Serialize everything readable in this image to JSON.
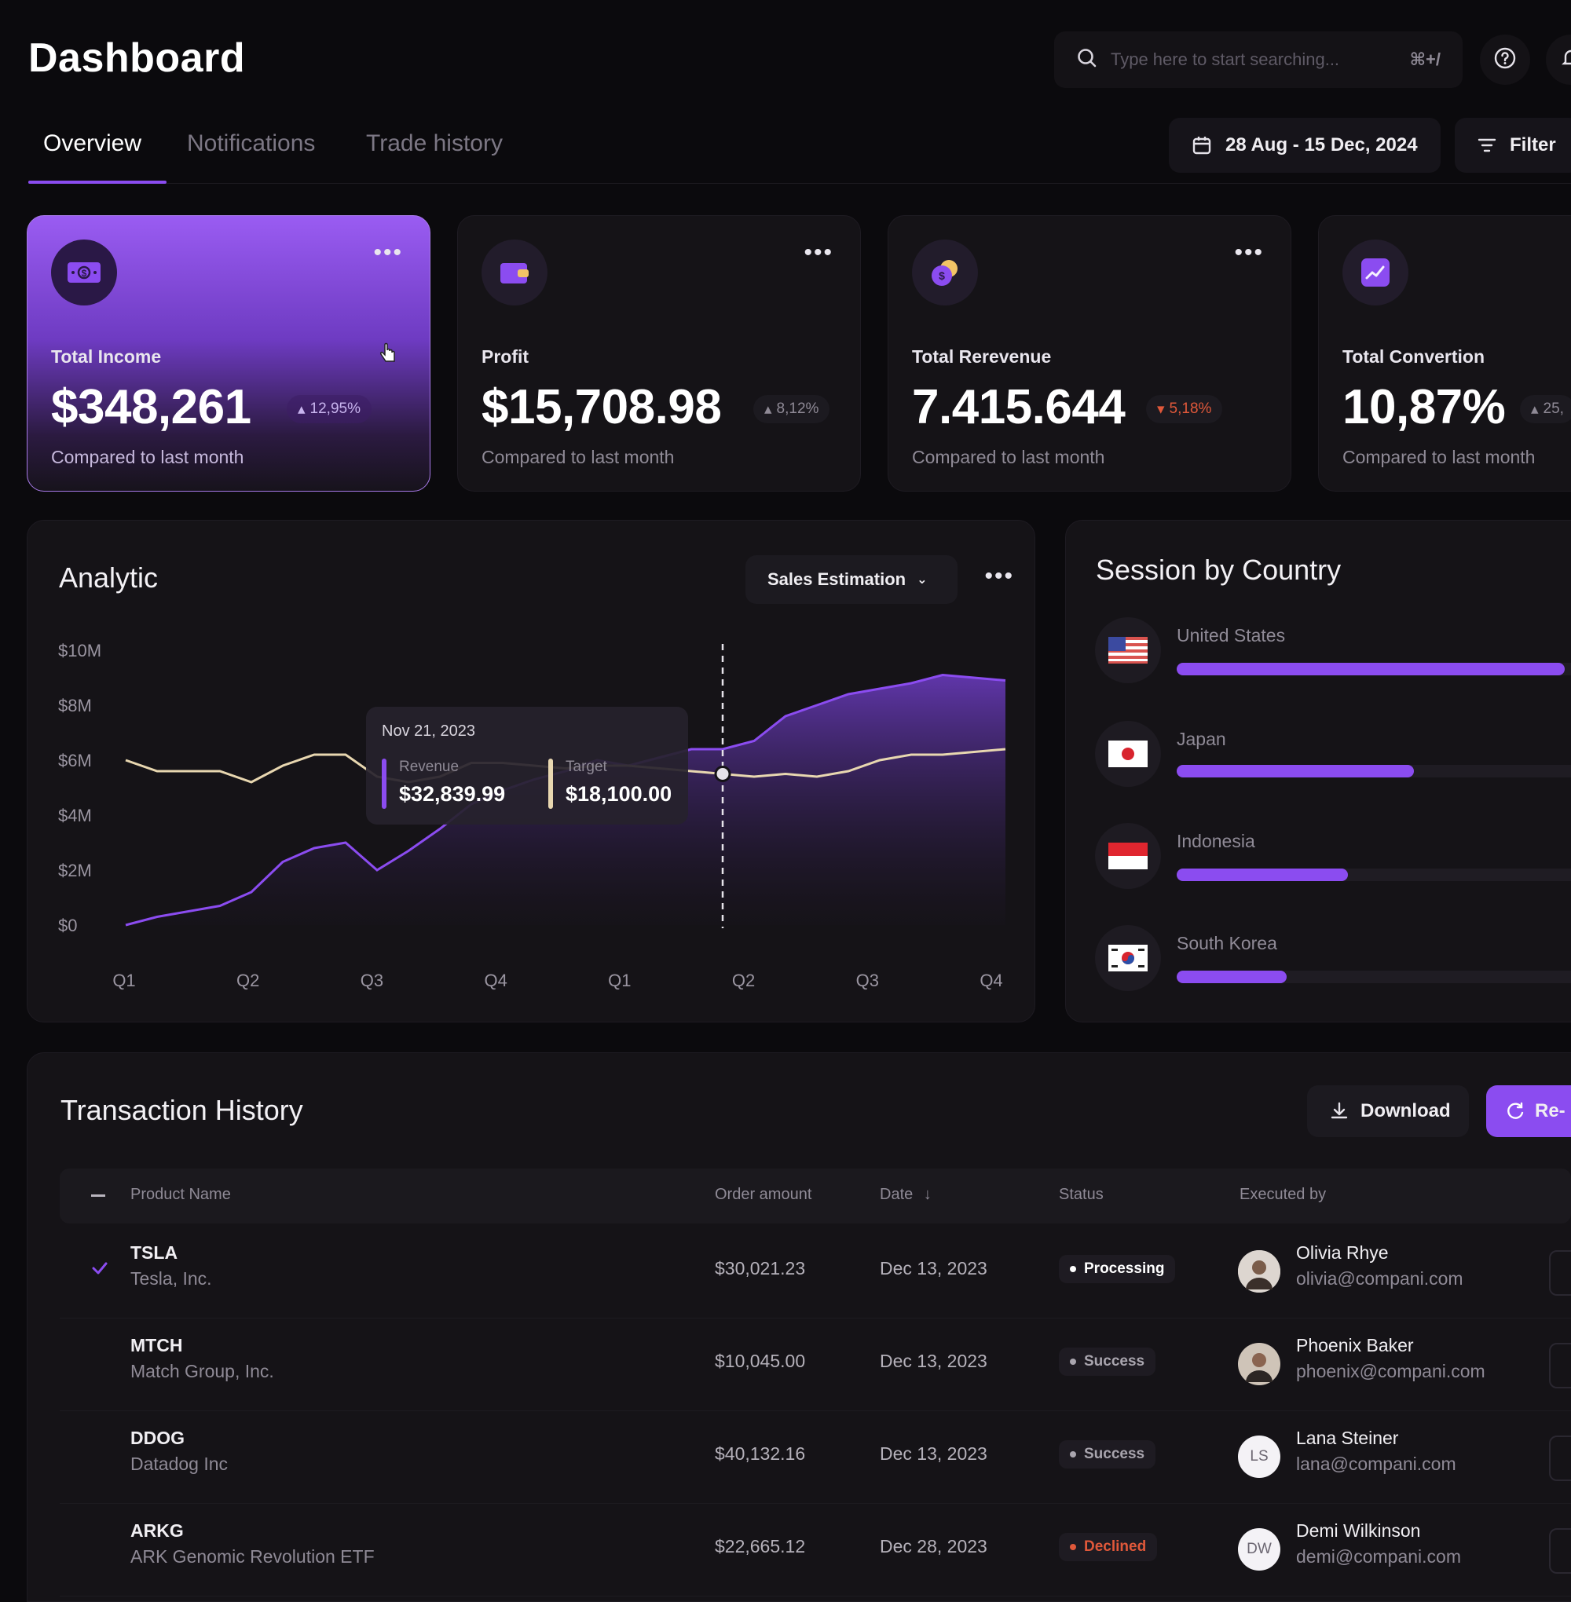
{
  "header": {
    "title": "Dashboard",
    "search_placeholder": "Type here to start searching...",
    "search_shortcut": "⌘+/",
    "help_icon": "help-circle-icon",
    "notification_icon": "bell-icon"
  },
  "tabs": [
    {
      "label": "Overview",
      "active": true
    },
    {
      "label": "Notifications",
      "active": false
    },
    {
      "label": "Trade history",
      "active": false
    }
  ],
  "date_range": {
    "label": "28 Aug - 15 Dec, 2024",
    "icon": "calendar-icon"
  },
  "filter": {
    "label": "Filter",
    "icon": "filter-icon"
  },
  "stats": [
    {
      "label": "Total Income",
      "value": "$348,261",
      "change": "12,95%",
      "footnote": "Compared to last month",
      "icon": "money-icon",
      "highlight": true
    },
    {
      "label": "Profit",
      "value": "$15,708.98",
      "change": "8,12%",
      "footnote": "Compared to last month",
      "icon": "wallet-icon",
      "highlight": false
    },
    {
      "label": "Total Rerevenue",
      "value": "7.415.644",
      "change": "5,18%",
      "footnote": "Compared to last month",
      "icon": "coins-icon",
      "highlight": false
    },
    {
      "label": "Total Convertion",
      "value": "10,87%",
      "change": "25,",
      "footnote": "Compared to last month",
      "icon": "trend-chart-icon",
      "highlight": false
    }
  ],
  "analytic": {
    "title": "Analytic",
    "dropdown_label": "Sales Estimation",
    "tooltip": {
      "date": "Nov 21, 2023",
      "revenue_label": "Revenue",
      "revenue_value": "$32,839.99",
      "target_label": "Target",
      "target_value": "$18,100.00"
    }
  },
  "chart_data": {
    "type": "area",
    "title": "Analytic",
    "xlabel": "",
    "ylabel": "",
    "categories": [
      "Q1",
      "Q2",
      "Q3",
      "Q4",
      "Q1",
      "Q2",
      "Q3",
      "Q4"
    ],
    "y_ticks": [
      "$10M",
      "$8M",
      "$6M",
      "$4M",
      "$2M",
      "$0"
    ],
    "ylim": [
      0,
      10
    ],
    "grid": false,
    "x": [
      0,
      0.25,
      0.5,
      0.75,
      1,
      1.25,
      1.5,
      1.75,
      2,
      2.25,
      2.5,
      2.75,
      3,
      3.25,
      3.5,
      3.75,
      4,
      4.25,
      4.5,
      4.75,
      5,
      5.25,
      5.5,
      5.75,
      6,
      6.25,
      6.5,
      6.75,
      7
    ],
    "series": [
      {
        "name": "Revenue",
        "color": "#8b4cf0",
        "values": [
          0.0,
          0.3,
          0.5,
          0.7,
          1.2,
          2.3,
          2.8,
          3.0,
          2.0,
          2.7,
          3.5,
          4.4,
          4.9,
          5.3,
          5.6,
          6.0,
          5.8,
          6.1,
          6.4,
          6.4,
          6.7,
          7.6,
          8.0,
          8.4,
          8.6,
          8.8,
          9.1,
          9.0,
          8.9
        ]
      },
      {
        "name": "Target",
        "color": "#e8d7b0",
        "values": [
          6.0,
          5.6,
          5.6,
          5.6,
          5.2,
          5.8,
          6.2,
          6.2,
          5.4,
          5.2,
          5.4,
          5.9,
          5.9,
          5.8,
          5.7,
          5.8,
          5.8,
          5.7,
          5.6,
          5.5,
          5.4,
          5.5,
          5.4,
          5.6,
          6.0,
          6.2,
          6.2,
          6.3,
          6.4
        ]
      }
    ],
    "marker_x": 4.75
  },
  "sessions": {
    "title": "Session by Country",
    "countries": [
      {
        "name": "United States",
        "flag": "us-flag-icon",
        "fraction": 0.95
      },
      {
        "name": "Japan",
        "flag": "japan-flag-icon",
        "fraction": 0.58
      },
      {
        "name": "Indonesia",
        "flag": "indonesia-flag-icon",
        "fraction": 0.42
      },
      {
        "name": "South Korea",
        "flag": "south-korea-flag-icon",
        "fraction": 0.27
      }
    ]
  },
  "transactions": {
    "title": "Transaction History",
    "download_label": "Download",
    "refresh_label": "Re-",
    "columns": [
      "Product Name",
      "Order amount",
      "Date",
      "Status",
      "Executed by"
    ],
    "rows": [
      {
        "symbol": "TSLA",
        "name": "Tesla, Inc.",
        "amount": "$30,021.23",
        "date": "Dec 13, 2023",
        "status": "Processing",
        "status_color": "#ffffff",
        "user": "Olivia Rhye",
        "email": "olivia@compani.com",
        "initials": "",
        "checked": true
      },
      {
        "symbol": "MTCH",
        "name": "Match Group, Inc.",
        "amount": "$10,045.00",
        "date": "Dec 13, 2023",
        "status": "Success",
        "status_color": "#a9a5ae",
        "user": "Phoenix Baker",
        "email": "phoenix@compani.com",
        "initials": "",
        "checked": false
      },
      {
        "symbol": "DDOG",
        "name": "Datadog Inc",
        "amount": "$40,132.16",
        "date": "Dec 13, 2023",
        "status": "Success",
        "status_color": "#a9a5ae",
        "user": "Lana Steiner",
        "email": "lana@compani.com",
        "initials": "LS",
        "checked": false
      },
      {
        "symbol": "ARKG",
        "name": "ARK Genomic Revolution ETF",
        "amount": "$22,665.12",
        "date": "Dec 28, 2023",
        "status": "Declined",
        "status_color": "#e0583a",
        "user": "Demi Wilkinson",
        "email": "demi@compani.com",
        "initials": "DW",
        "checked": false
      }
    ]
  }
}
